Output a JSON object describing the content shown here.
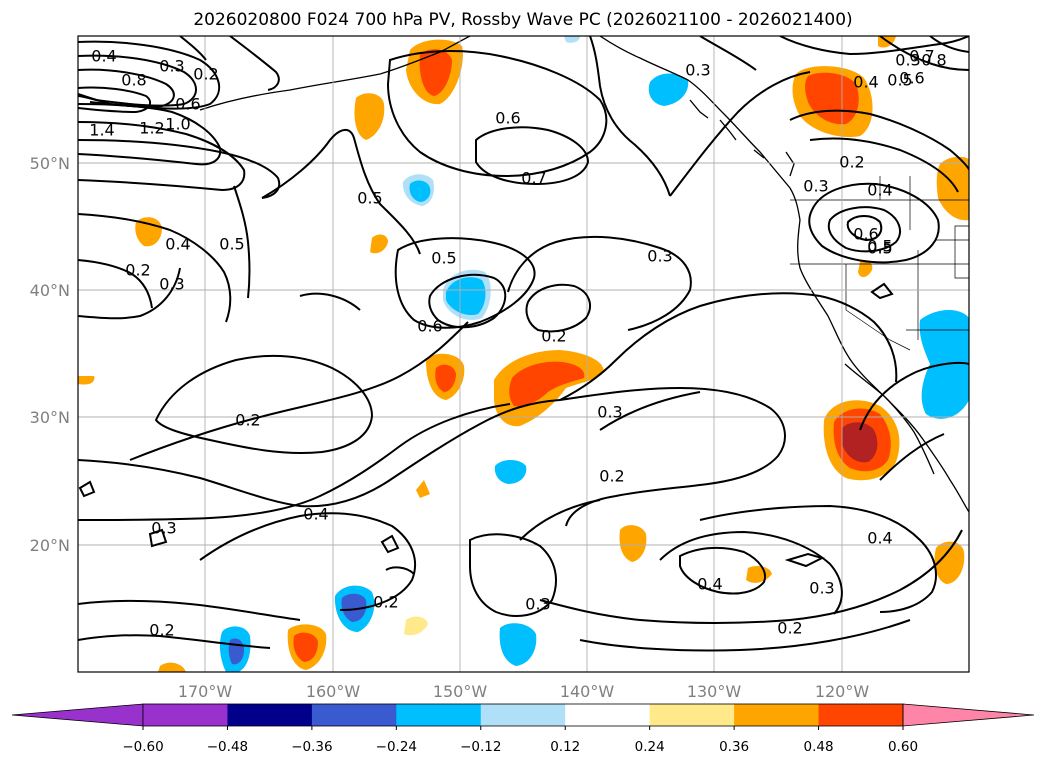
{
  "title": "2026020800 F024 700 hPa PV, Rossby Wave PC (2026021100 - 2026021400)",
  "lat_labels": [
    "50°N",
    "40°N",
    "30°N",
    "20°N"
  ],
  "lon_labels": [
    "170°W",
    "160°W",
    "150°W",
    "140°W",
    "130°W",
    "120°W"
  ],
  "colorbar": {
    "levels": [
      "-0.60",
      "-0.48",
      "-0.36",
      "-0.24",
      "-0.12",
      "0.12",
      "0.24",
      "0.36",
      "0.48",
      "0.60"
    ],
    "colors": [
      "#9932cc",
      "#9932cc",
      "#00008b",
      "#3a5bd0",
      "#00bfff",
      "#b0e0f8",
      "#ffffff",
      "#ffe98a",
      "#ffa500",
      "#ff4500",
      "#b22222",
      "#ff85a8"
    ],
    "extend": "both"
  },
  "contour_labels": [
    {
      "text": "0.4"
    },
    {
      "text": "0.3"
    },
    {
      "text": "0.2"
    },
    {
      "text": "0.8"
    },
    {
      "text": "0.6"
    },
    {
      "text": "1.0"
    },
    {
      "text": "1.2"
    },
    {
      "text": "1.4"
    },
    {
      "text": "0.5"
    },
    {
      "text": "0.6"
    },
    {
      "text": "0.7"
    },
    {
      "text": "0.5"
    },
    {
      "text": "0.3"
    },
    {
      "text": "0.4"
    },
    {
      "text": "0.5"
    },
    {
      "text": "0.2"
    },
    {
      "text": "0.3"
    },
    {
      "text": "0.6"
    },
    {
      "text": "0.3"
    },
    {
      "text": "0.2"
    },
    {
      "text": "0.2"
    },
    {
      "text": "0.3"
    },
    {
      "text": "0.4"
    },
    {
      "text": "0.3"
    },
    {
      "text": "0.2"
    },
    {
      "text": "0.2"
    },
    {
      "text": "0.3"
    },
    {
      "text": "0.2"
    },
    {
      "text": "0.4"
    },
    {
      "text": "0.4"
    },
    {
      "text": "0.3"
    },
    {
      "text": "0.2"
    },
    {
      "text": "0.3"
    },
    {
      "text": "0.4"
    },
    {
      "text": "0.5"
    },
    {
      "text": "0.6"
    },
    {
      "text": "0.7"
    },
    {
      "text": "0.8"
    },
    {
      "text": "0.5"
    },
    {
      "text": "0.6"
    },
    {
      "text": "0.3"
    },
    {
      "text": "0.4"
    },
    {
      "text": "0.5"
    },
    {
      "text": "0.2"
    }
  ],
  "shading_legend": {
    "negative_colors": [
      "#00bfff",
      "#3a5bd0"
    ],
    "positive_colors": [
      "#ffa500",
      "#ff4500",
      "#b22222"
    ]
  }
}
